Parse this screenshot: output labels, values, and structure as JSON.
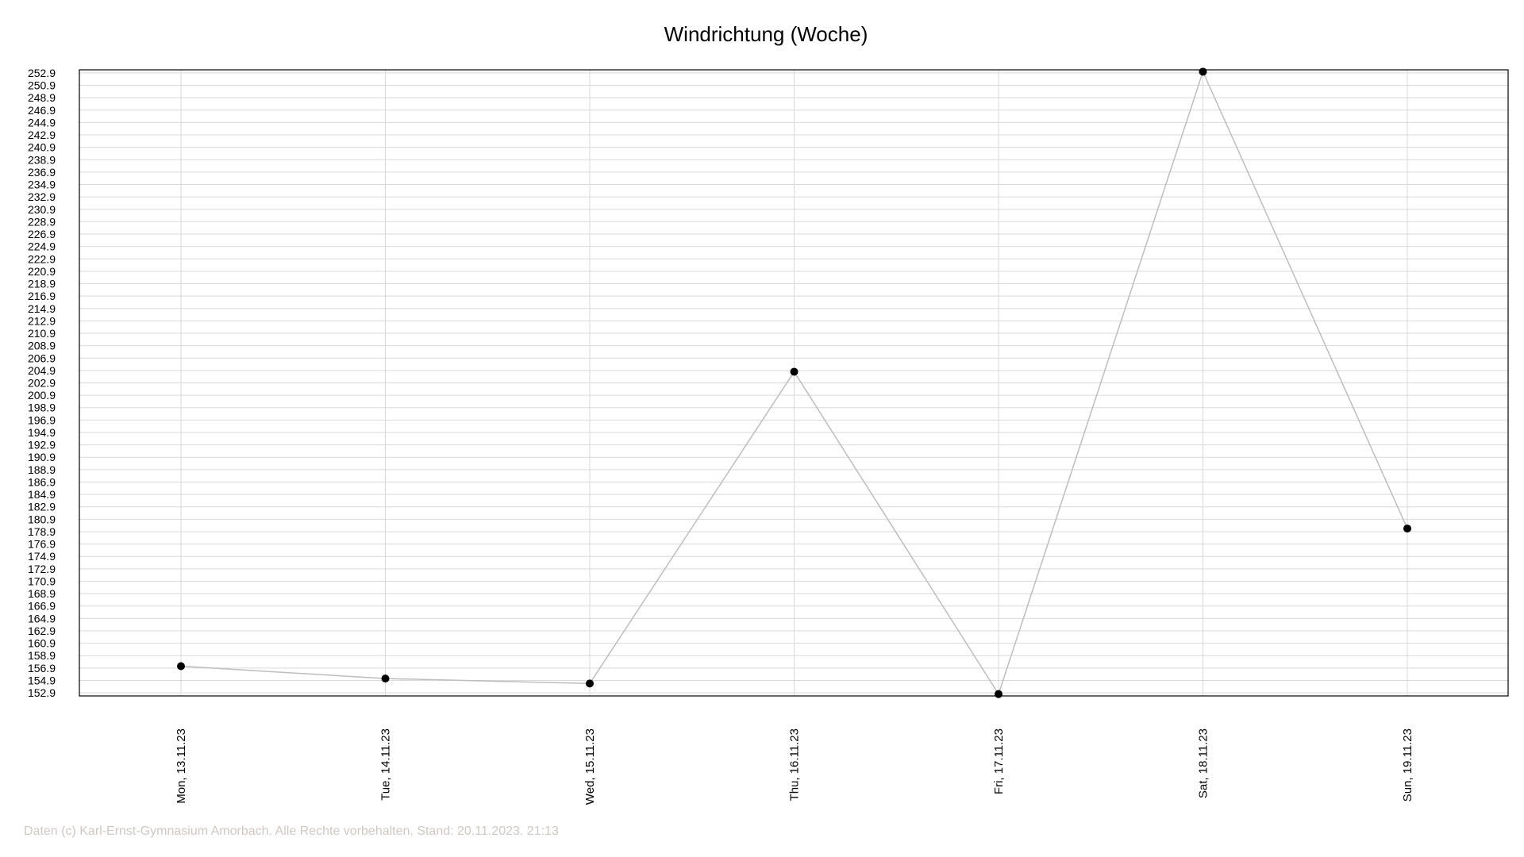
{
  "chart_data": {
    "type": "line",
    "title": "Windrichtung (Woche)",
    "xlabel": "",
    "ylabel": "",
    "categories": [
      "Mon, 13.11.23",
      "Tue, 14.11.23",
      "Wed, 15.11.23",
      "Thu, 16.11.23",
      "Fri, 17.11.23",
      "Sat, 18.11.23",
      "Sun, 19.11.23"
    ],
    "series": [
      {
        "values": [
          157.2,
          155.2,
          154.4,
          204.7,
          152.7,
          253.1,
          179.4
        ]
      }
    ],
    "ylim": [
      152.4,
      253.4
    ],
    "yticks": [
      "152.9",
      "154.9",
      "156.9",
      "158.9",
      "160.9",
      "162.9",
      "164.9",
      "166.9",
      "168.9",
      "170.9",
      "172.9",
      "174.9",
      "176.9",
      "178.9",
      "180.9",
      "182.9",
      "184.9",
      "186.9",
      "188.9",
      "190.9",
      "192.9",
      "194.9",
      "196.9",
      "198.9",
      "200.9",
      "202.9",
      "204.9",
      "206.9",
      "208.9",
      "210.9",
      "212.9",
      "214.9",
      "216.9",
      "218.9",
      "220.9",
      "222.9",
      "224.9",
      "226.9",
      "228.9",
      "230.9",
      "232.9",
      "234.9",
      "236.9",
      "238.9",
      "240.9",
      "242.9",
      "244.9",
      "246.9",
      "248.9",
      "250.9",
      "252.9"
    ],
    "grid": true,
    "legend": "none",
    "line_color": "#bdbdbd",
    "marker_color": "#000000",
    "grid_color": "#d9d9d9"
  },
  "footer": {
    "text": "Daten (c) Karl-Ernst-Gymnasium Amorbach. Alle Rechte vorbehalten. Stand: 20.11.2023. 21:13",
    "color": "#cfc8c3"
  }
}
